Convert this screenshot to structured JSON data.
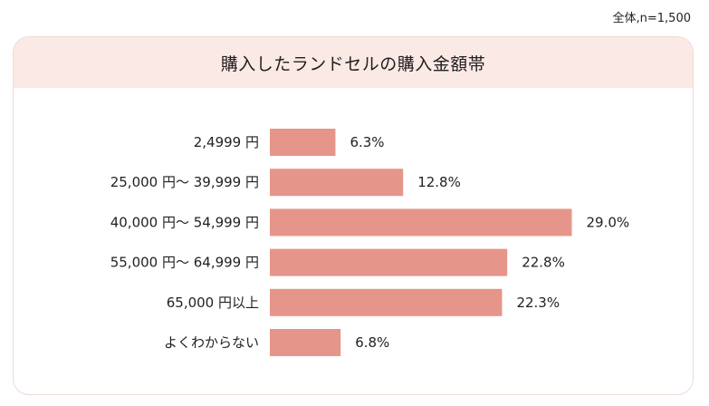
{
  "note": "全体,n=1,500",
  "title": "購入したランドセルの購入金額帯",
  "colors": {
    "bar": "#e6958a",
    "header_bg": "#fbe9e5",
    "card_border": "#ecdcd6"
  },
  "chart_data": {
    "type": "bar",
    "orientation": "horizontal",
    "title": "購入したランドセルの購入金額帯",
    "categories": [
      "2,4999 円",
      "25,000 円～ 39,999 円",
      "40,000 円～ 54,999 円",
      "55,000 円～ 64,999 円",
      "65,000 円以上",
      "よくわからない"
    ],
    "values": [
      6.3,
      12.8,
      29.0,
      22.8,
      22.3,
      6.8
    ],
    "value_labels": [
      "6.3%",
      "12.8%",
      "29.0%",
      "22.8%",
      "22.3%",
      "6.8%"
    ],
    "unit": "%",
    "grid": false,
    "legend": "none"
  }
}
